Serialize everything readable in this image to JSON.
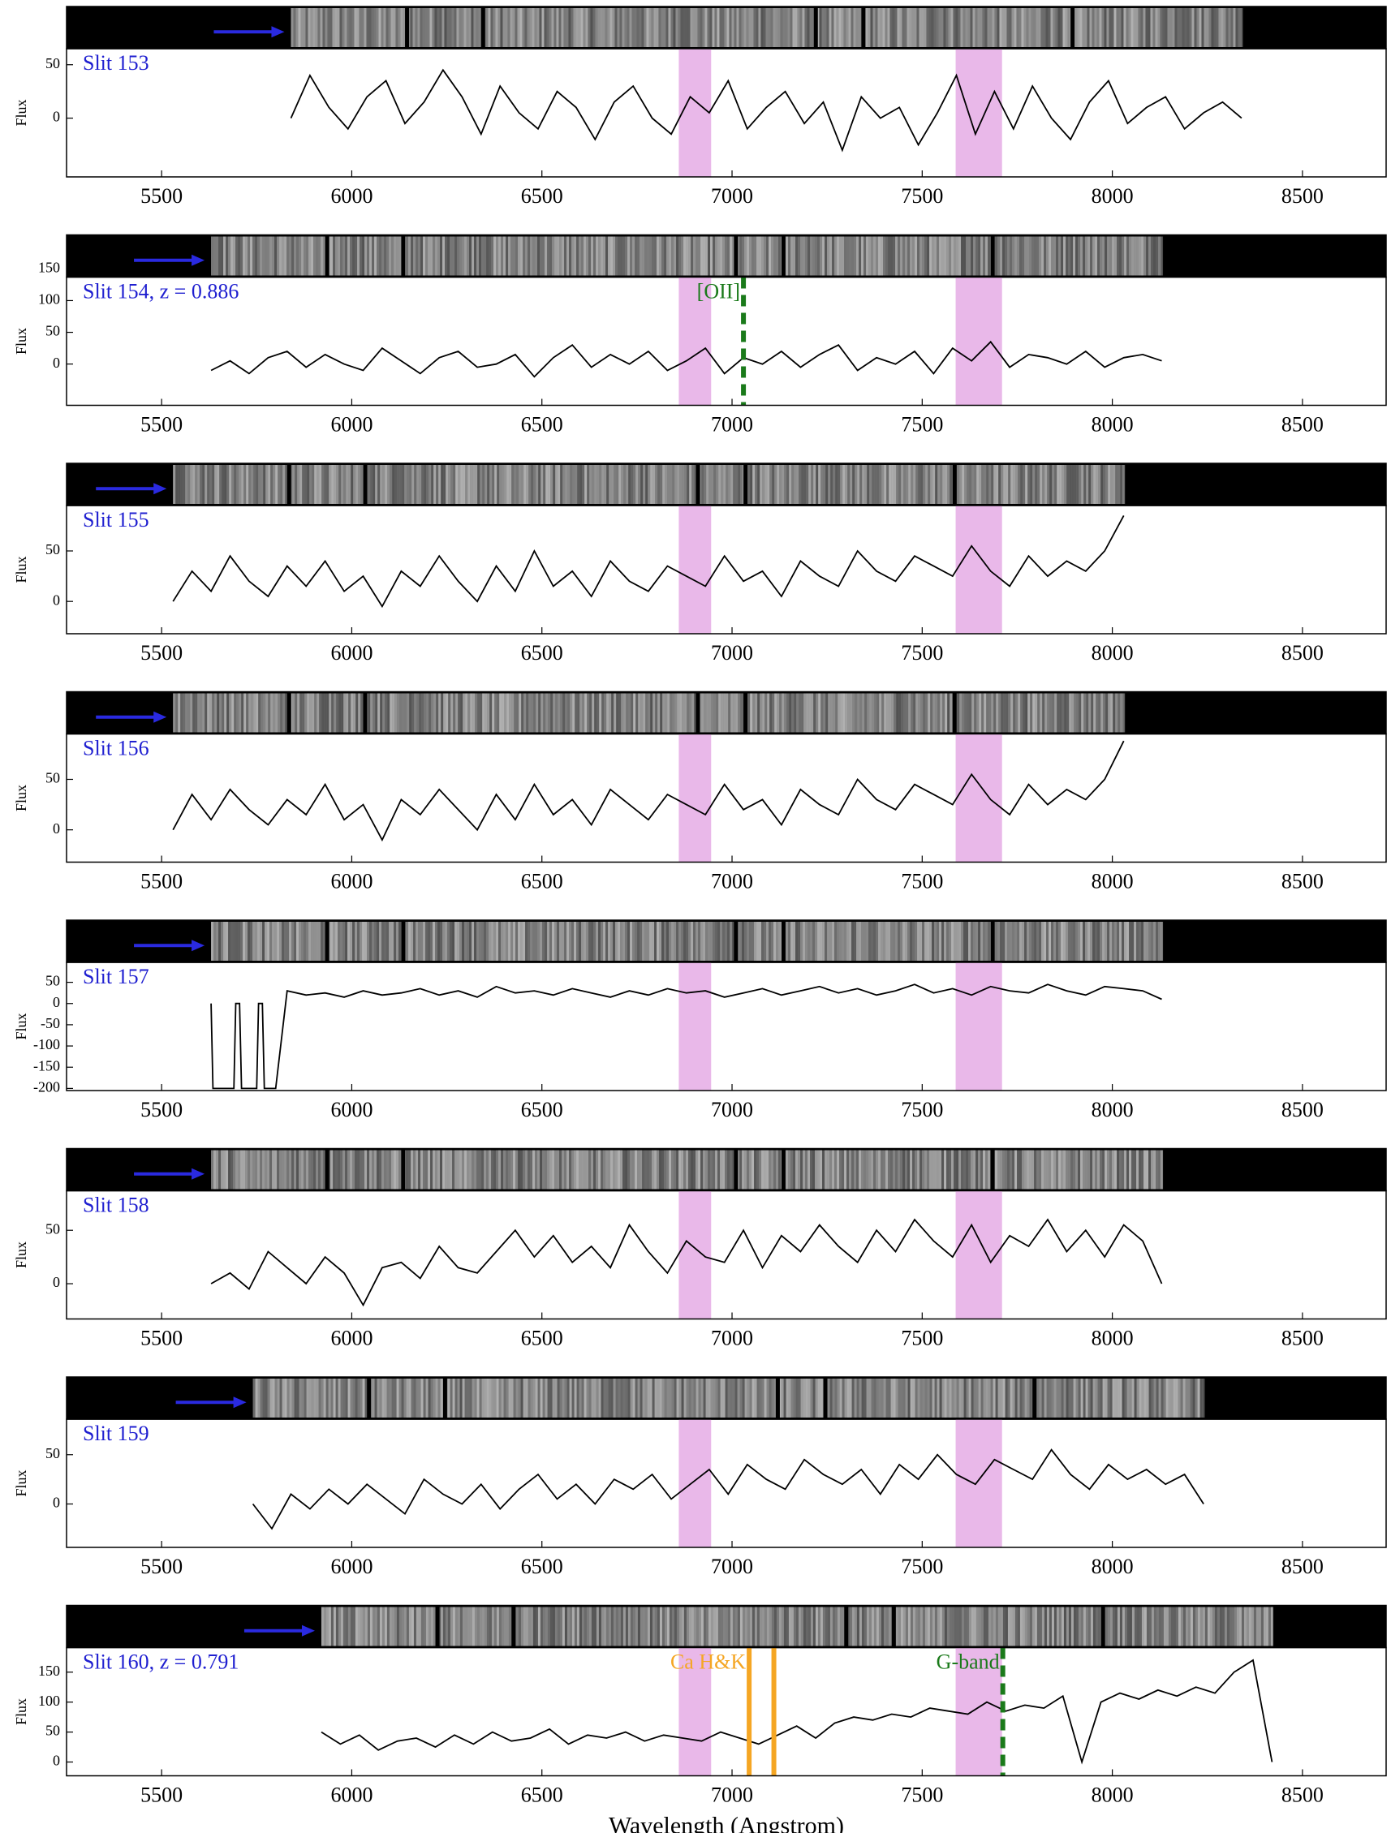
{
  "chart_data": [
    {
      "type": "line",
      "title": "Slit 153",
      "ylabel": "Flux",
      "color": "#000000",
      "title_color": "#1f1fd0",
      "xlim": [
        5250,
        8720
      ],
      "xticks": [
        5500,
        6000,
        6500,
        7000,
        7500,
        8000,
        8500
      ],
      "ylim": [
        -55,
        65
      ],
      "yticks": [
        0,
        50
      ],
      "bands": [
        [
          6860,
          6945
        ],
        [
          7588,
          7710
        ]
      ],
      "band_color": "#e9b8e9",
      "x": [
        5840,
        5890,
        5940,
        5990,
        6040,
        6090,
        6140,
        6190,
        6240,
        6290,
        6340,
        6390,
        6440,
        6490,
        6540,
        6590,
        6640,
        6690,
        6740,
        6790,
        6840,
        6890,
        6940,
        6990,
        7040,
        7090,
        7140,
        7190,
        7240,
        7290,
        7340,
        7390,
        7440,
        7490,
        7540,
        7590,
        7640,
        7690,
        7740,
        7790,
        7840,
        7890,
        7940,
        7990,
        8040,
        8090,
        8140,
        8190,
        8240,
        8290,
        8340
      ],
      "values": [
        0,
        40,
        10,
        -10,
        20,
        35,
        -5,
        15,
        45,
        20,
        -15,
        30,
        5,
        -10,
        25,
        10,
        -20,
        15,
        30,
        0,
        -15,
        20,
        5,
        35,
        -10,
        10,
        25,
        -5,
        15,
        -30,
        20,
        0,
        10,
        -25,
        5,
        40,
        -15,
        25,
        -10,
        30,
        0,
        -20,
        15,
        35,
        -5,
        10,
        20,
        -10,
        5,
        15,
        0
      ]
    },
    {
      "type": "line",
      "title": "Slit 154, z = 0.886",
      "ylabel": "Flux",
      "color": "#000000",
      "title_color": "#1f1fd0",
      "xlim": [
        5250,
        8720
      ],
      "xticks": [
        5500,
        6000,
        6500,
        7000,
        7500,
        8000,
        8500
      ],
      "ylim": [
        -65,
        137
      ],
      "yticks": [
        0,
        50,
        100,
        150
      ],
      "bands": [
        [
          6860,
          6945
        ],
        [
          7588,
          7710
        ]
      ],
      "band_color": "#e9b8e9",
      "lines": [
        {
          "x": 7030,
          "label": "[OII]",
          "color": "#1a7a1a",
          "style": "dashed"
        }
      ],
      "x": [
        5630,
        5680,
        5730,
        5780,
        5830,
        5880,
        5930,
        5980,
        6030,
        6080,
        6130,
        6180,
        6230,
        6280,
        6330,
        6380,
        6430,
        6480,
        6530,
        6580,
        6630,
        6680,
        6730,
        6780,
        6830,
        6880,
        6930,
        6980,
        7030,
        7080,
        7130,
        7180,
        7230,
        7280,
        7330,
        7380,
        7430,
        7480,
        7530,
        7580,
        7630,
        7680,
        7730,
        7780,
        7830,
        7880,
        7930,
        7980,
        8030,
        8080,
        8130
      ],
      "values": [
        -10,
        5,
        -15,
        10,
        20,
        -5,
        15,
        0,
        -10,
        25,
        5,
        -15,
        10,
        20,
        -5,
        0,
        15,
        -20,
        10,
        30,
        -5,
        15,
        0,
        20,
        -10,
        5,
        25,
        -15,
        10,
        0,
        20,
        -5,
        15,
        30,
        -10,
        10,
        0,
        20,
        -15,
        25,
        5,
        35,
        -5,
        15,
        10,
        0,
        20,
        -5,
        10,
        15,
        5
      ]
    },
    {
      "type": "line",
      "title": "Slit 155",
      "ylabel": "Flux",
      "color": "#000000",
      "title_color": "#1f1fd0",
      "xlim": [
        5250,
        8720
      ],
      "xticks": [
        5500,
        6000,
        6500,
        7000,
        7500,
        8000,
        8500
      ],
      "ylim": [
        -32,
        95
      ],
      "yticks": [
        0,
        50
      ],
      "bands": [
        [
          6860,
          6945
        ],
        [
          7588,
          7710
        ]
      ],
      "band_color": "#e9b8e9",
      "x": [
        5530,
        5580,
        5630,
        5680,
        5730,
        5780,
        5830,
        5880,
        5930,
        5980,
        6030,
        6080,
        6130,
        6180,
        6230,
        6280,
        6330,
        6380,
        6430,
        6480,
        6530,
        6580,
        6630,
        6680,
        6730,
        6780,
        6830,
        6880,
        6930,
        6980,
        7030,
        7080,
        7130,
        7180,
        7230,
        7280,
        7330,
        7380,
        7430,
        7480,
        7530,
        7580,
        7630,
        7680,
        7730,
        7780,
        7830,
        7880,
        7930,
        7980,
        8030
      ],
      "values": [
        0,
        30,
        10,
        45,
        20,
        5,
        35,
        15,
        40,
        10,
        25,
        -5,
        30,
        15,
        45,
        20,
        0,
        35,
        10,
        50,
        15,
        30,
        5,
        40,
        20,
        10,
        35,
        25,
        15,
        45,
        20,
        30,
        5,
        40,
        25,
        15,
        50,
        30,
        20,
        45,
        35,
        25,
        55,
        30,
        15,
        45,
        25,
        40,
        30,
        50,
        85
      ]
    },
    {
      "type": "line",
      "title": "Slit 156",
      "ylabel": "Flux",
      "color": "#000000",
      "title_color": "#1f1fd0",
      "xlim": [
        5250,
        8720
      ],
      "xticks": [
        5500,
        6000,
        6500,
        7000,
        7500,
        8000,
        8500
      ],
      "ylim": [
        -32,
        95
      ],
      "yticks": [
        0,
        50
      ],
      "bands": [
        [
          6860,
          6945
        ],
        [
          7588,
          7710
        ]
      ],
      "band_color": "#e9b8e9",
      "x": [
        5530,
        5580,
        5630,
        5680,
        5730,
        5780,
        5830,
        5880,
        5930,
        5980,
        6030,
        6080,
        6130,
        6180,
        6230,
        6280,
        6330,
        6380,
        6430,
        6480,
        6530,
        6580,
        6630,
        6680,
        6730,
        6780,
        6830,
        6880,
        6930,
        6980,
        7030,
        7080,
        7130,
        7180,
        7230,
        7280,
        7330,
        7380,
        7430,
        7480,
        7530,
        7580,
        7630,
        7680,
        7730,
        7780,
        7830,
        7880,
        7930,
        7980,
        8030
      ],
      "values": [
        0,
        35,
        10,
        40,
        20,
        5,
        30,
        15,
        45,
        10,
        25,
        -10,
        30,
        15,
        40,
        20,
        0,
        35,
        10,
        45,
        15,
        30,
        5,
        40,
        25,
        10,
        35,
        25,
        15,
        45,
        20,
        30,
        5,
        40,
        25,
        15,
        50,
        30,
        20,
        45,
        35,
        25,
        55,
        30,
        15,
        45,
        25,
        40,
        30,
        50,
        88
      ]
    },
    {
      "type": "line",
      "title": "Slit 157",
      "ylabel": "Flux",
      "color": "#000000",
      "title_color": "#1f1fd0",
      "xlim": [
        5250,
        8720
      ],
      "xticks": [
        5500,
        6000,
        6500,
        7000,
        7500,
        8000,
        8500
      ],
      "ylim": [
        -205,
        97
      ],
      "yticks": [
        -200,
        -150,
        -100,
        -50,
        0,
        50
      ],
      "bands": [
        [
          6860,
          6945
        ],
        [
          7588,
          7710
        ]
      ],
      "band_color": "#e9b8e9",
      "x": [
        5630,
        5635,
        5690,
        5695,
        5705,
        5710,
        5750,
        5755,
        5765,
        5770,
        5800,
        5830,
        5880,
        5930,
        5980,
        6030,
        6080,
        6130,
        6180,
        6230,
        6280,
        6330,
        6380,
        6430,
        6480,
        6530,
        6580,
        6630,
        6680,
        6730,
        6780,
        6830,
        6880,
        6930,
        6980,
        7030,
        7080,
        7130,
        7180,
        7230,
        7280,
        7330,
        7380,
        7430,
        7480,
        7530,
        7580,
        7630,
        7680,
        7730,
        7780,
        7830,
        7880,
        7930,
        7980,
        8030,
        8080,
        8130
      ],
      "values": [
        0,
        -200,
        -200,
        0,
        0,
        -200,
        -200,
        0,
        0,
        -200,
        -200,
        30,
        20,
        25,
        15,
        30,
        20,
        25,
        35,
        20,
        30,
        15,
        40,
        25,
        30,
        20,
        35,
        25,
        15,
        30,
        20,
        35,
        25,
        30,
        15,
        25,
        35,
        20,
        30,
        40,
        25,
        35,
        20,
        30,
        45,
        25,
        35,
        20,
        40,
        30,
        25,
        45,
        30,
        20,
        40,
        35,
        30,
        10
      ]
    },
    {
      "type": "line",
      "title": "Slit 158",
      "ylabel": "Flux",
      "color": "#000000",
      "title_color": "#1f1fd0",
      "xlim": [
        5250,
        8720
      ],
      "xticks": [
        5500,
        6000,
        6500,
        7000,
        7500,
        8000,
        8500
      ],
      "ylim": [
        -33,
        87
      ],
      "yticks": [
        0,
        50
      ],
      "bands": [
        [
          6860,
          6945
        ],
        [
          7588,
          7710
        ]
      ],
      "band_color": "#e9b8e9",
      "x": [
        5630,
        5680,
        5730,
        5780,
        5830,
        5880,
        5930,
        5980,
        6030,
        6080,
        6130,
        6180,
        6230,
        6280,
        6330,
        6380,
        6430,
        6480,
        6530,
        6580,
        6630,
        6680,
        6730,
        6780,
        6830,
        6880,
        6930,
        6980,
        7030,
        7080,
        7130,
        7180,
        7230,
        7280,
        7330,
        7380,
        7430,
        7480,
        7530,
        7580,
        7630,
        7680,
        7730,
        7780,
        7830,
        7880,
        7930,
        7980,
        8030,
        8080,
        8130
      ],
      "values": [
        0,
        10,
        -5,
        30,
        15,
        0,
        25,
        10,
        -20,
        15,
        20,
        5,
        35,
        15,
        10,
        30,
        50,
        25,
        45,
        20,
        35,
        15,
        55,
        30,
        10,
        40,
        25,
        20,
        50,
        15,
        45,
        30,
        55,
        35,
        20,
        50,
        30,
        60,
        40,
        25,
        55,
        20,
        45,
        35,
        60,
        30,
        50,
        25,
        55,
        40,
        0
      ]
    },
    {
      "type": "line",
      "title": "Slit 159",
      "ylabel": "Flux",
      "color": "#000000",
      "title_color": "#1f1fd0",
      "xlim": [
        5250,
        8720
      ],
      "xticks": [
        5500,
        6000,
        6500,
        7000,
        7500,
        8000,
        8500
      ],
      "ylim": [
        -44,
        86
      ],
      "yticks": [
        0,
        50
      ],
      "bands": [
        [
          6860,
          6945
        ],
        [
          7588,
          7710
        ]
      ],
      "band_color": "#e9b8e9",
      "x": [
        5740,
        5790,
        5840,
        5890,
        5940,
        5990,
        6040,
        6090,
        6140,
        6190,
        6240,
        6290,
        6340,
        6390,
        6440,
        6490,
        6540,
        6590,
        6640,
        6690,
        6740,
        6790,
        6840,
        6890,
        6940,
        6990,
        7040,
        7090,
        7140,
        7190,
        7240,
        7290,
        7340,
        7390,
        7440,
        7490,
        7540,
        7590,
        7640,
        7690,
        7740,
        7790,
        7840,
        7890,
        7940,
        7990,
        8040,
        8090,
        8140,
        8190,
        8240
      ],
      "values": [
        0,
        -25,
        10,
        -5,
        15,
        0,
        20,
        5,
        -10,
        25,
        10,
        0,
        20,
        -5,
        15,
        30,
        5,
        20,
        0,
        25,
        15,
        30,
        5,
        20,
        35,
        10,
        40,
        25,
        15,
        45,
        30,
        20,
        35,
        10,
        40,
        25,
        50,
        30,
        20,
        45,
        35,
        25,
        55,
        30,
        15,
        40,
        25,
        35,
        20,
        30,
        0
      ]
    },
    {
      "type": "line",
      "title": "Slit 160, z = 0.791",
      "ylabel": "Flux",
      "xlabel": "Wavelength (Angstrom)",
      "color": "#000000",
      "title_color": "#1f1fd0",
      "xlim": [
        5250,
        8720
      ],
      "xticks": [
        5500,
        6000,
        6500,
        7000,
        7500,
        8000,
        8500
      ],
      "ylim": [
        -23,
        191
      ],
      "yticks": [
        0,
        50,
        100,
        150
      ],
      "bands": [
        [
          6860,
          6945
        ],
        [
          7588,
          7710
        ]
      ],
      "band_color": "#e9b8e9",
      "lines": [
        {
          "x": 7045,
          "label": "Ca H&K",
          "color": "#f5a623",
          "style": "solid"
        },
        {
          "x": 7110,
          "color": "#f5a623",
          "style": "solid"
        },
        {
          "x": 7712,
          "label": "G-band",
          "color": "#1a7a1a",
          "style": "dashed"
        }
      ],
      "x": [
        5920,
        5970,
        6020,
        6070,
        6120,
        6170,
        6220,
        6270,
        6320,
        6370,
        6420,
        6470,
        6520,
        6570,
        6620,
        6670,
        6720,
        6770,
        6820,
        6870,
        6920,
        6970,
        7020,
        7070,
        7120,
        7170,
        7220,
        7270,
        7320,
        7370,
        7420,
        7470,
        7520,
        7570,
        7620,
        7670,
        7720,
        7770,
        7820,
        7870,
        7920,
        7970,
        8020,
        8070,
        8120,
        8170,
        8220,
        8270,
        8320,
        8370,
        8420
      ],
      "values": [
        50,
        30,
        45,
        20,
        35,
        40,
        25,
        45,
        30,
        50,
        35,
        40,
        55,
        30,
        45,
        40,
        50,
        35,
        45,
        40,
        35,
        50,
        40,
        30,
        45,
        60,
        40,
        65,
        75,
        70,
        80,
        75,
        90,
        85,
        80,
        100,
        85,
        95,
        90,
        110,
        0,
        100,
        115,
        105,
        120,
        110,
        125,
        115,
        150,
        170,
        0
      ]
    }
  ]
}
